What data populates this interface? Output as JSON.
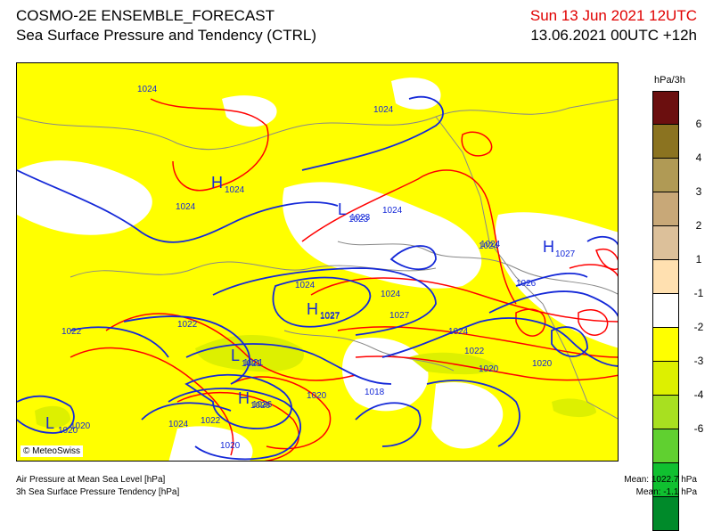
{
  "header": {
    "title": "COSMO-2E ENSEMBLE_FORECAST",
    "subtitle": "Sea Surface Pressure and Tendency (CTRL)",
    "run_date": "Sun 13 Jun 2021 12UTC",
    "valid_time": "13.06.2021 00UTC +12h"
  },
  "map": {
    "copyright": "© MeteoSwiss",
    "isobar_labels": [
      "1024",
      "1024",
      "1024",
      "1024",
      "1024",
      "1024",
      "1024",
      "1024",
      "1023",
      "1027",
      "1022",
      "1022",
      "1021",
      "1026",
      "1020",
      "1022",
      "1020",
      "1018",
      "1024",
      "1022",
      "1020",
      "1020",
      "1026",
      "1027",
      "1024",
      "1020"
    ],
    "pressure_centers": [
      {
        "type": "H",
        "value": "1024"
      },
      {
        "type": "L",
        "value": "1023"
      },
      {
        "type": "H",
        "value": "1027"
      },
      {
        "type": "L",
        "value": "1021"
      },
      {
        "type": "H",
        "value": "1026"
      },
      {
        "type": "L",
        "value": "1020"
      },
      {
        "type": "H",
        "value": "1027"
      }
    ]
  },
  "legend": {
    "unit": "hPa/3h",
    "ticks": [
      "6",
      "4",
      "3",
      "2",
      "1",
      "-1",
      "-2",
      "-3",
      "-4",
      "-6"
    ],
    "colors": [
      "#6b0f0f",
      "#8b7320",
      "#b09a55",
      "#c8a878",
      "#dcc09a",
      "#ffe0b0",
      "#ffffff",
      "#ffff00",
      "#ddf000",
      "#a8e020",
      "#60d030",
      "#10c030",
      "#008a2a"
    ]
  },
  "footer": {
    "line1": "Air Pressure at Mean Sea Level [hPa]",
    "line2": "3h Sea Surface Pressure Tendency [hPa]",
    "mean1": "Mean: 1022.7 hPa",
    "mean2": "Mean:   -1.1 hPa"
  }
}
